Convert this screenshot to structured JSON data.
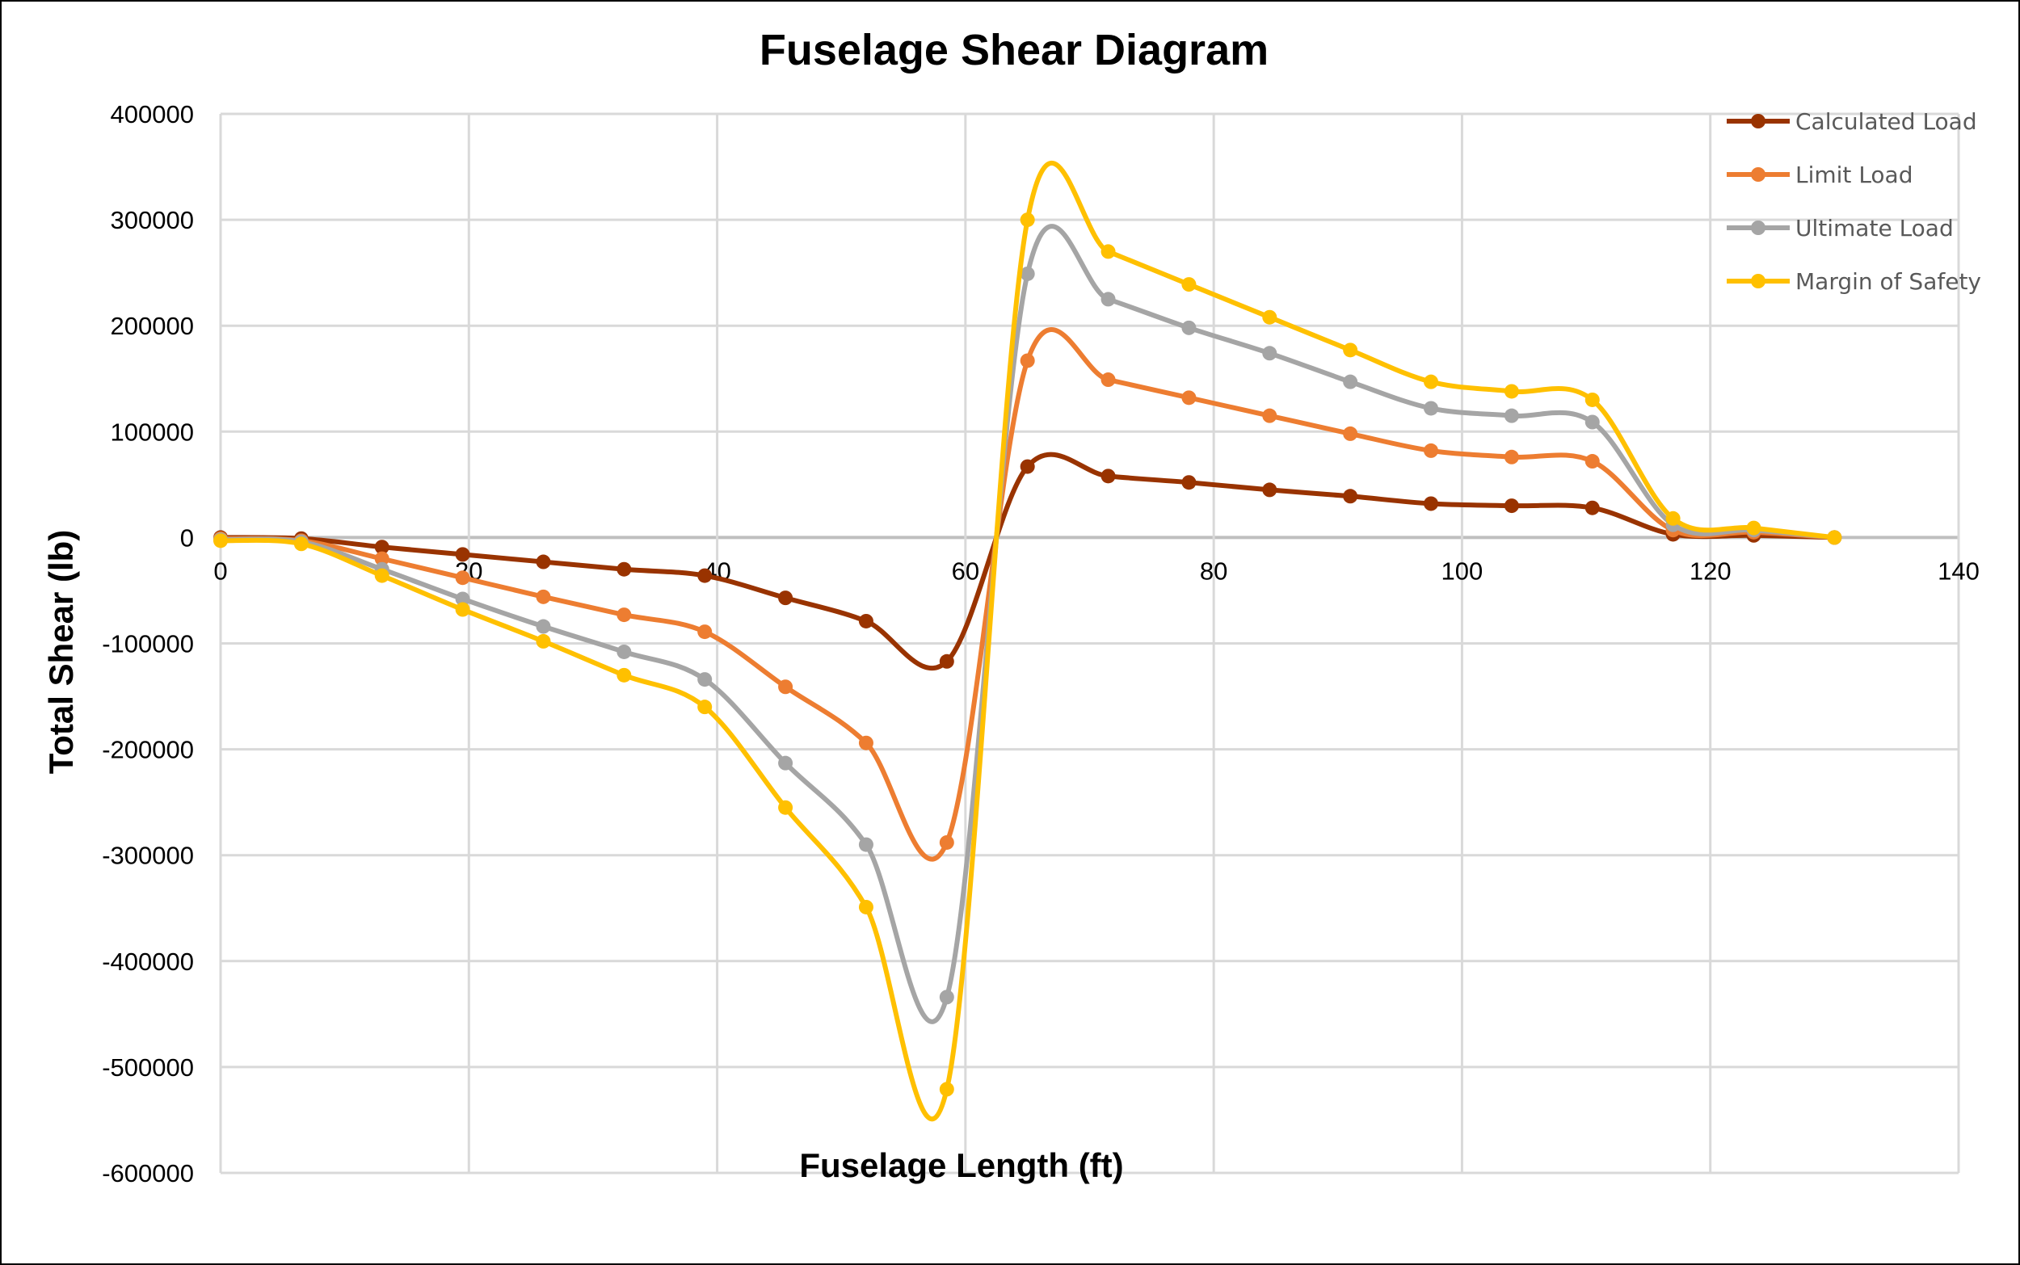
{
  "chart_data": {
    "type": "line",
    "title": "Fuselage Shear Diagram",
    "xlabel": "Fuselage Length (ft)",
    "ylabel": "Total Shear (lb)",
    "xlim": [
      0,
      140
    ],
    "ylim": [
      -600000,
      400000
    ],
    "x_ticks": [
      0,
      20,
      40,
      60,
      80,
      100,
      120,
      140
    ],
    "y_ticks": [
      400000,
      300000,
      200000,
      100000,
      0,
      -100000,
      -200000,
      -300000,
      -400000,
      -500000,
      -600000
    ],
    "grid": true,
    "smooth": true,
    "legend_position": "top-right",
    "x": [
      0,
      6.5,
      13,
      19.5,
      26,
      32.5,
      39,
      45.5,
      52,
      58.5,
      65,
      71.5,
      78,
      84.5,
      91,
      97.5,
      104,
      110.5,
      117,
      123.5,
      130
    ],
    "series": [
      {
        "name": "Calculated Load",
        "color": "#993300",
        "values": [
          0,
          -1000,
          -9000,
          -16000,
          -23000,
          -30000,
          -36000,
          -57000,
          -79000,
          -117000,
          67000,
          58000,
          52000,
          45000,
          39000,
          32000,
          30000,
          28000,
          3000,
          2000,
          0
        ]
      },
      {
        "name": "Limit Load",
        "color": "#ED7D31",
        "values": [
          -1000,
          -3000,
          -20000,
          -38000,
          -56000,
          -73000,
          -89000,
          -141000,
          -194000,
          -288000,
          167000,
          149000,
          132000,
          115000,
          98000,
          82000,
          76000,
          72000,
          7000,
          5000,
          0
        ]
      },
      {
        "name": "Ultimate Load",
        "color": "#A5A5A5",
        "values": [
          -2000,
          -4000,
          -30000,
          -58000,
          -84000,
          -108000,
          -134000,
          -213000,
          -290000,
          -434000,
          249000,
          225000,
          198000,
          174000,
          147000,
          122000,
          115000,
          109000,
          12000,
          7000,
          0
        ]
      },
      {
        "name": "Margin of Safety",
        "color": "#FFC000",
        "values": [
          -3000,
          -6000,
          -36000,
          -68000,
          -98000,
          -130000,
          -160000,
          -255000,
          -349000,
          -521000,
          300000,
          270000,
          239000,
          208000,
          177000,
          147000,
          138000,
          130000,
          18000,
          9000,
          0
        ]
      }
    ]
  }
}
